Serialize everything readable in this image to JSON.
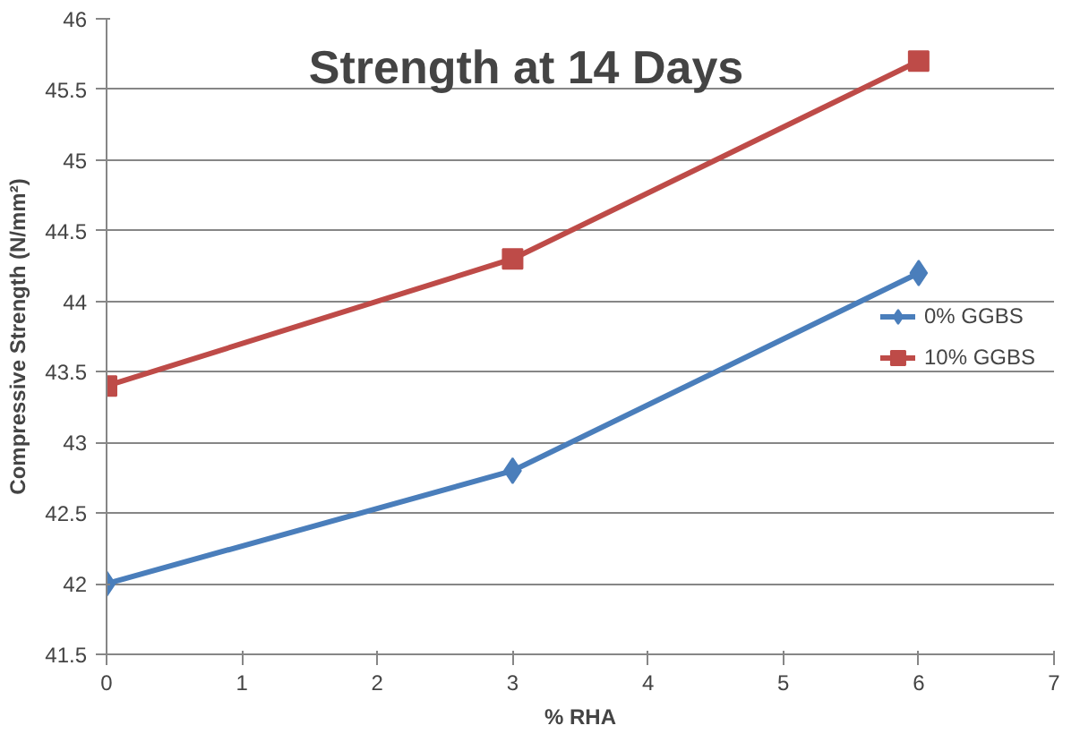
{
  "chart_data": {
    "type": "line",
    "title": "Strength at 14 Days",
    "xlabel": "% RHA",
    "ylabel": "Compressive Strength (N/mm²)",
    "x": [
      0,
      3,
      6
    ],
    "series": [
      {
        "name": "0% GGBS",
        "color": "#4a7ebb",
        "values": [
          42,
          42.8,
          44.2
        ],
        "marker": "diamond"
      },
      {
        "name": "10% GGBS",
        "color": "#be4b48",
        "values": [
          43.4,
          44.3,
          45.7
        ],
        "marker": "square"
      }
    ],
    "xlim": [
      0,
      7
    ],
    "xticks": [
      0,
      1,
      2,
      3,
      4,
      5,
      6,
      7
    ],
    "ylim": [
      41.5,
      46
    ],
    "yticks": [
      41.5,
      42,
      42.5,
      43,
      43.5,
      44,
      44.5,
      45,
      45.5,
      46
    ],
    "grid": "y",
    "legend": "center right",
    "line_style": "solid"
  }
}
